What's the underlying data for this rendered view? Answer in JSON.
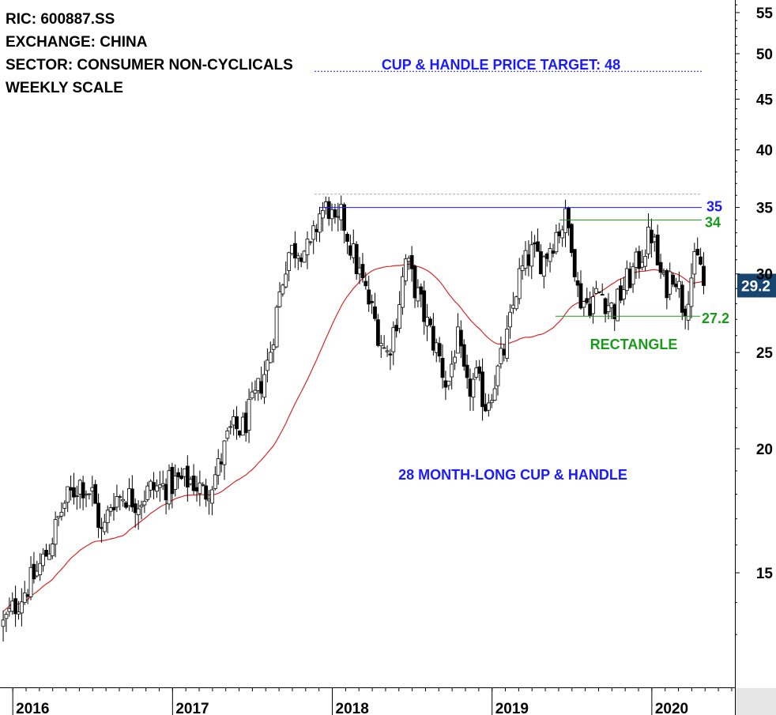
{
  "chart_data": {
    "type": "candlestick",
    "info_lines": [
      "RIC: 600887.SS",
      "EXCHANGE: CHINA",
      "SECTOR: CONSUMER NON-CYCLICALS",
      "WEEKLY SCALE"
    ],
    "y_scale": "log",
    "ylim": [
      12,
      58
    ],
    "y_ticks": [
      15,
      20,
      25,
      30,
      35,
      40,
      45,
      50,
      55
    ],
    "x_range": [
      2015.92,
      2020.52
    ],
    "x_ticks": [
      {
        "x": 2016.0,
        "label": "2016"
      },
      {
        "x": 2017.0,
        "label": "2017"
      },
      {
        "x": 2018.0,
        "label": "2018"
      },
      {
        "x": 2019.0,
        "label": "2019"
      },
      {
        "x": 2020.0,
        "label": "2020"
      }
    ],
    "last_price": {
      "value": 29.2,
      "label": "29.2"
    },
    "moving_average_color": "#d62828",
    "annotations": {
      "price_target": {
        "text": "CUP & HANDLE PRICE TARGET: 48",
        "level": 48,
        "color": "#1a1aff"
      },
      "resistance_35": {
        "text": "35",
        "level": 35,
        "color": "#1a1aff"
      },
      "resistance_34": {
        "text": "34",
        "level": 34,
        "color": "#1a9a1a"
      },
      "support_27": {
        "text": "27.2",
        "level": 27.2,
        "color": "#1a9a1a"
      },
      "rectangle": {
        "text": "RECTANGLE",
        "color": "#1a9a1a"
      },
      "cup_handle": {
        "text": "28 MONTH-LONG CUP & HANDLE",
        "color": "#1a1aff"
      }
    },
    "anchors": [
      [
        2015.94,
        13.3
      ],
      [
        2016.05,
        14.2
      ],
      [
        2016.15,
        15.0
      ],
      [
        2016.22,
        15.8
      ],
      [
        2016.32,
        17.6
      ],
      [
        2016.42,
        18.5
      ],
      [
        2016.5,
        18.0
      ],
      [
        2016.56,
        16.3
      ],
      [
        2016.62,
        17.8
      ],
      [
        2016.7,
        18.0
      ],
      [
        2016.78,
        17.7
      ],
      [
        2016.86,
        18.2
      ],
      [
        2016.94,
        18.3
      ],
      [
        2017.02,
        18.5
      ],
      [
        2017.12,
        18.6
      ],
      [
        2017.2,
        18.0
      ],
      [
        2017.28,
        19.0
      ],
      [
        2017.36,
        20.8
      ],
      [
        2017.44,
        21.0
      ],
      [
        2017.52,
        22.5
      ],
      [
        2017.6,
        24.5
      ],
      [
        2017.66,
        28.0
      ],
      [
        2017.72,
        31.5
      ],
      [
        2017.8,
        32.0
      ],
      [
        2017.86,
        31.5
      ],
      [
        2017.92,
        34.5
      ],
      [
        2017.98,
        35.0
      ],
      [
        2018.02,
        33.0
      ],
      [
        2018.06,
        34.3
      ],
      [
        2018.14,
        31.0
      ],
      [
        2018.2,
        29.0
      ],
      [
        2018.28,
        26.5
      ],
      [
        2018.34,
        24.8
      ],
      [
        2018.4,
        27.0
      ],
      [
        2018.46,
        31.0
      ],
      [
        2018.52,
        29.0
      ],
      [
        2018.6,
        26.5
      ],
      [
        2018.66,
        25.0
      ],
      [
        2018.72,
        23.0
      ],
      [
        2018.78,
        26.0
      ],
      [
        2018.84,
        22.8
      ],
      [
        2018.9,
        23.5
      ],
      [
        2018.96,
        22.2
      ],
      [
        2019.04,
        24.0
      ],
      [
        2019.1,
        26.0
      ],
      [
        2019.16,
        29.5
      ],
      [
        2019.24,
        31.5
      ],
      [
        2019.32,
        31.0
      ],
      [
        2019.4,
        33.0
      ],
      [
        2019.46,
        34.0
      ],
      [
        2019.5,
        32.5
      ],
      [
        2019.54,
        28.5
      ],
      [
        2019.6,
        28.0
      ],
      [
        2019.68,
        28.8
      ],
      [
        2019.76,
        27.5
      ],
      [
        2019.82,
        29.0
      ],
      [
        2019.9,
        30.5
      ],
      [
        2019.96,
        32.0
      ],
      [
        2020.0,
        33.0
      ],
      [
        2020.04,
        30.5
      ],
      [
        2020.08,
        29.0
      ],
      [
        2020.14,
        30.5
      ],
      [
        2020.2,
        27.6
      ],
      [
        2020.26,
        30.5
      ],
      [
        2020.3,
        31.0
      ],
      [
        2020.33,
        29.2
      ]
    ]
  }
}
